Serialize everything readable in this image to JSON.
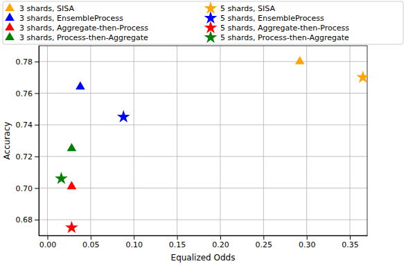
{
  "chart_data": {
    "type": "scatter",
    "x_label": "Equalized Odds",
    "y_label": "Accuracy",
    "xlim": [
      -0.01,
      0.37
    ],
    "ylim": [
      0.67,
      0.79
    ],
    "xticks": [
      {
        "value": 0,
        "label": "0.00"
      },
      0.05,
      {
        "value": 0.1,
        "label": "0.10"
      },
      0.15,
      {
        "value": 0.2,
        "label": "0.20"
      },
      0.25,
      {
        "value": 0.3,
        "label": "0.30"
      },
      0.35
    ],
    "yticks": [
      0.68,
      {
        "value": 0.7,
        "label": "0.70"
      },
      0.72,
      0.74,
      0.76,
      0.78
    ],
    "grid": true,
    "legend": "top",
    "series": [
      {
        "name": "3 shards, SISA",
        "color": "#ffa500",
        "marker": "triangle",
        "x": [
          0.292
        ],
        "values": [
          0.78
        ]
      },
      {
        "name": "3 shards, EnsembleProcess",
        "color": "#0000ff",
        "marker": "triangle",
        "x": [
          0.038
        ],
        "values": [
          0.764
        ]
      },
      {
        "name": "3 shards, Aggregate-then-Process",
        "color": "#ff0000",
        "marker": "triangle",
        "x": [
          0.028
        ],
        "values": [
          0.701
        ]
      },
      {
        "name": "3 shards, Process-then-Aggregate",
        "color": "#008000",
        "marker": "triangle",
        "x": [
          0.028
        ],
        "values": [
          0.725
        ]
      },
      {
        "name": "5 shards, SISA",
        "color": "#ffa500",
        "marker": "star",
        "x": [
          0.365
        ],
        "values": [
          0.77
        ]
      },
      {
        "name": "5 shards, EnsembleProcess",
        "color": "#0000ff",
        "marker": "star",
        "x": [
          0.088
        ],
        "values": [
          0.745
        ]
      },
      {
        "name": "5 shards, Aggregate-then-Process",
        "color": "#ff0000",
        "marker": "star",
        "x": [
          0.028
        ],
        "values": [
          0.675
        ]
      },
      {
        "name": "5 shards, Process-then-Aggregate",
        "color": "#008000",
        "marker": "star",
        "x": [
          0.016
        ],
        "values": [
          0.706
        ]
      }
    ]
  }
}
